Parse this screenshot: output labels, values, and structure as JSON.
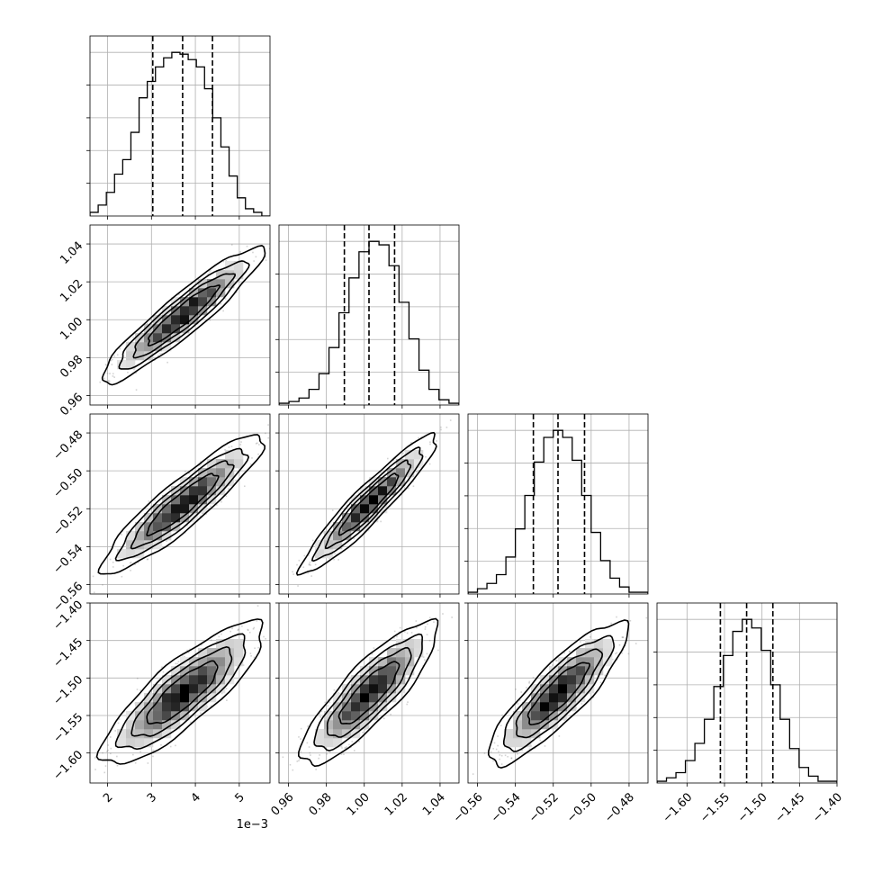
{
  "chart_data": {
    "type": "corner",
    "parameters": [
      {
        "range": [
          1.6,
          5.7
        ],
        "ticks": [
          2,
          3,
          4,
          5
        ],
        "tick_labels": [
          "2",
          "3",
          "4",
          "5"
        ],
        "offset_label": "1e−3",
        "quantiles": [
          3.03,
          3.71,
          4.39
        ],
        "hist_edges": [
          1.6,
          5.7
        ],
        "hist_counts": [
          2,
          6,
          13,
          23,
          31,
          46,
          65,
          74,
          82,
          87,
          90,
          89,
          86,
          82,
          70,
          54,
          38,
          22,
          10,
          4,
          2,
          0
        ]
      },
      {
        "range": [
          0.955,
          1.05
        ],
        "ticks": [
          0.96,
          0.98,
          1.0,
          1.02,
          1.04
        ],
        "tick_labels": [
          "0.96",
          "0.98",
          "1.00",
          "1.02",
          "1.04"
        ],
        "offset_label": "",
        "quantiles": [
          0.9895,
          1.0025,
          1.016
        ],
        "hist_edges": [
          0.955,
          1.05
        ],
        "hist_counts": [
          1,
          2,
          4,
          9,
          18,
          33,
          53,
          73,
          88,
          94,
          92,
          80,
          59,
          38,
          20,
          9,
          3,
          1
        ]
      },
      {
        "range": [
          -0.565,
          -0.47
        ],
        "ticks": [
          -0.56,
          -0.54,
          -0.52,
          -0.5,
          -0.48
        ],
        "tick_labels": [
          "−0.56",
          "−0.54",
          "−0.52",
          "−0.50",
          "−0.48"
        ],
        "offset_label": "",
        "quantiles": [
          -0.5305,
          -0.5175,
          -0.5035
        ],
        "hist_edges": [
          -0.565,
          -0.47
        ],
        "hist_counts": [
          1,
          3,
          6,
          11,
          21,
          37,
          56,
          75,
          89,
          93,
          89,
          76,
          56,
          35,
          19,
          9,
          4,
          1,
          1
        ]
      },
      {
        "range": [
          -1.64,
          -1.4
        ],
        "ticks": [
          -1.6,
          -1.55,
          -1.5,
          -1.45,
          -1.4
        ],
        "tick_labels": [
          "−1.60",
          "−1.55",
          "−1.50",
          "−1.45",
          "−1.40"
        ],
        "offset_label": "",
        "quantiles": [
          -1.5555,
          -1.5205,
          -1.4855
        ],
        "hist_edges": [
          -1.64,
          -1.4
        ],
        "hist_counts": [
          1,
          3,
          6,
          13,
          23,
          37,
          56,
          74,
          88,
          95,
          90,
          77,
          57,
          37,
          20,
          9,
          4,
          1,
          1
        ]
      }
    ],
    "correlations": {
      "1-0": 0.93,
      "2-0": 0.91,
      "2-1": 0.94,
      "3-0": 0.84,
      "3-1": 0.85,
      "3-2": 0.86
    },
    "grid": true,
    "colors": {
      "hist": "#000000",
      "quantile_line": "#000000",
      "contour": "#000000",
      "density_fill": "#000000",
      "points": "#808080",
      "grid": "#b0b0b0"
    }
  }
}
